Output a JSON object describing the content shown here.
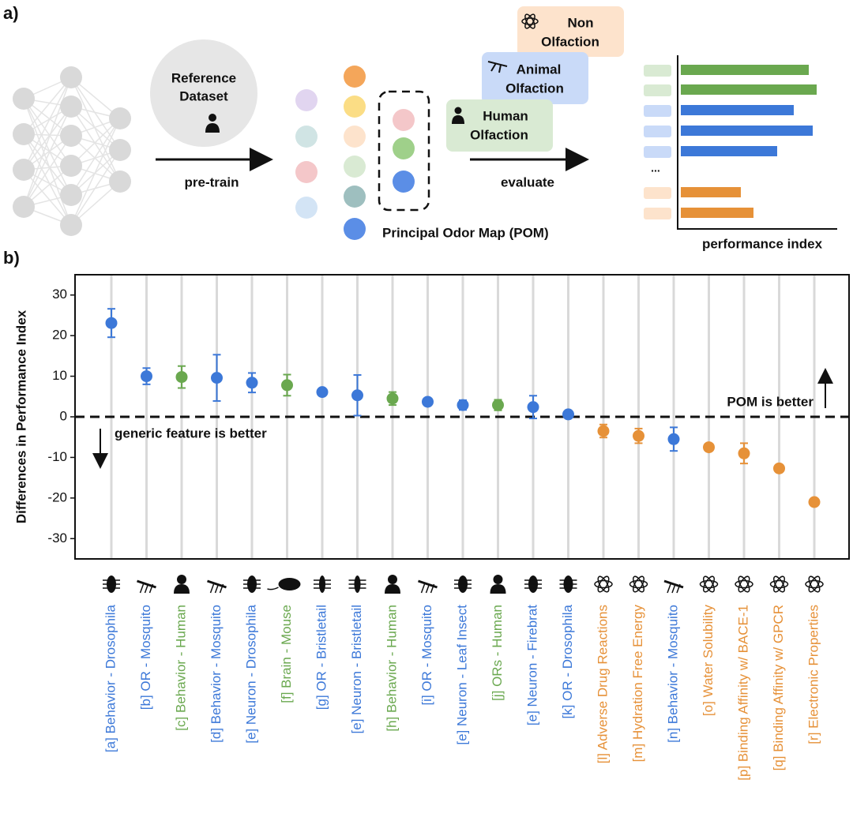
{
  "panel_a": {
    "label": "a)",
    "reference": [
      "Reference",
      "Dataset"
    ],
    "pretrain": "pre-train",
    "pom": "Principal Odor Map (POM)",
    "evaluate": "evaluate",
    "non": [
      "Non",
      "Olfaction"
    ],
    "animal": [
      "Animal",
      "Olfaction"
    ],
    "human": [
      "Human",
      "Olfaction"
    ],
    "ellipsis": "...",
    "perf": "performance index"
  },
  "chart_data": {
    "type": "scatter",
    "label": "b)",
    "ylabel": "Differences in Performance Index",
    "categories": [
      "[a] Behavior - Drosophila",
      "[b] OR - Mosquito",
      "[c] Behavior - Human",
      "[d] Behavior - Mosquito",
      "[e] Neuron - Drosophila",
      "[f] Brain - Mouse",
      "[g] OR - Bristletail",
      "[e] Neuron - Bristletail",
      "[h] Behavior - Human",
      "[i] OR - Mosquito",
      "[e] Neuron - Leaf Insect",
      "[j] ORs - Human",
      "[e] Neuron - Firebrat",
      "[k] OR - Drosophila",
      "[l] Adverse Drug Reactions",
      "[m] Hydration Free Energy",
      "[n] Behavior - Mosquito",
      "[o] Water Solubility",
      "[p] Binding Affinity w/ BACE-1",
      "[q] Binding Affinity w/ GPCR",
      "[r] Electronic Properties"
    ],
    "values": [
      23.1,
      10.0,
      9.8,
      9.6,
      8.4,
      7.8,
      6.1,
      5.3,
      4.5,
      3.7,
      2.9,
      2.9,
      2.4,
      0.6,
      -3.5,
      -4.7,
      -5.5,
      -7.5,
      -9.0,
      -12.7,
      -21.0
    ],
    "errors": [
      3.5,
      2.0,
      2.7,
      5.7,
      2.4,
      2.6,
      0.5,
      5.0,
      1.6,
      0.5,
      1.2,
      1.3,
      2.8,
      0.3,
      1.6,
      1.8,
      2.9,
      0.5,
      2.5,
      0.5,
      0.5
    ],
    "colors": [
      "#3c78d8",
      "#3c78d8",
      "#6aa84f",
      "#3c78d8",
      "#3c78d8",
      "#6aa84f",
      "#3c78d8",
      "#3c78d8",
      "#6aa84f",
      "#3c78d8",
      "#3c78d8",
      "#6aa84f",
      "#3c78d8",
      "#3c78d8",
      "#e69138",
      "#e69138",
      "#3c78d8",
      "#e69138",
      "#e69138",
      "#e69138",
      "#e69138"
    ],
    "ylim": [
      -35,
      35
    ],
    "yticks": [
      -30,
      -20,
      -10,
      0,
      10,
      20,
      30
    ],
    "reference_line": 0,
    "grid": true,
    "annotations": [
      "POM is better",
      "generic feature is better"
    ]
  }
}
